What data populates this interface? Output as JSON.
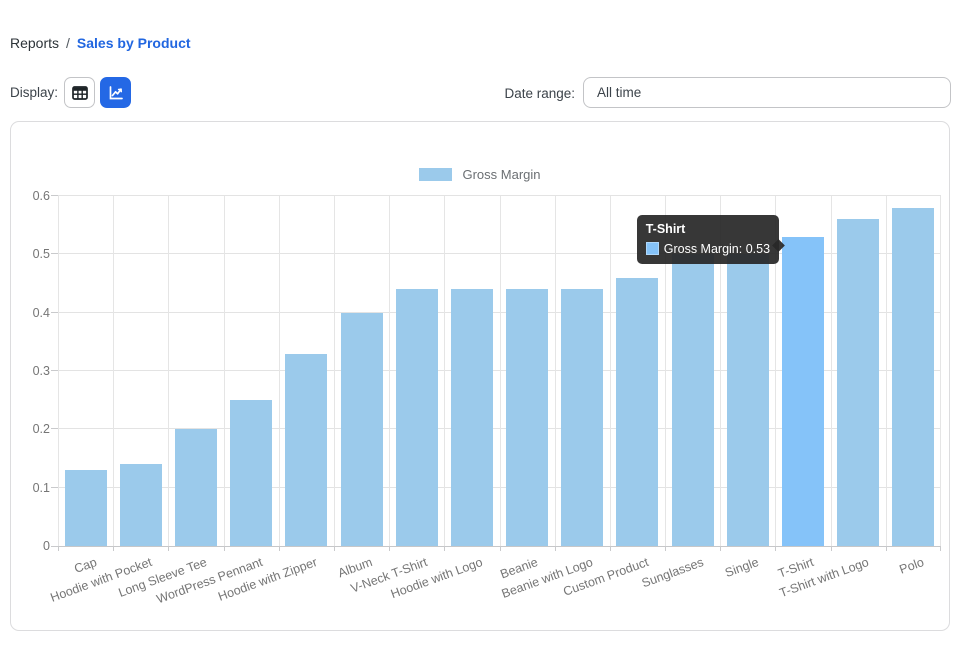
{
  "breadcrumb": {
    "root": "Reports",
    "separator": "/",
    "current": "Sales by Product"
  },
  "toolbar": {
    "display_label": "Display:",
    "view_buttons": [
      {
        "name": "table-view",
        "icon": "table-icon",
        "selected": false
      },
      {
        "name": "chart-view",
        "icon": "line-chart-icon",
        "selected": true
      }
    ],
    "date_range_label": "Date range:",
    "date_range_value": "All time"
  },
  "colors": {
    "accent": "#2468e5",
    "link": "#2166e0",
    "bar": "#9bcaeb",
    "bar_highlight": "#85c3f9",
    "grid": "#e3e3e3",
    "axis": "#c6c7c9",
    "muted_text": "#757575",
    "tooltip_bg": "#282828"
  },
  "chart_data": {
    "type": "bar",
    "title": "",
    "legend": [
      {
        "label": "Gross Margin",
        "color": "#9bcaeb"
      }
    ],
    "legend_position": "top-center",
    "grid": true,
    "categories": [
      "Cap",
      "Hoodie with Pocket",
      "Long Sleeve Tee",
      "WordPress Pennant",
      "Hoodie with Zipper",
      "Album",
      "V-Neck T-Shirt",
      "Hoodie with Logo",
      "Beanie",
      "Beanie with Logo",
      "Custom Product",
      "Sunglasses",
      "Single",
      "T-Shirt",
      "T-Shirt with Logo",
      "Polo"
    ],
    "values": [
      0.13,
      0.14,
      0.2,
      0.25,
      0.33,
      0.4,
      0.44,
      0.44,
      0.44,
      0.44,
      0.46,
      0.5,
      0.5,
      0.53,
      0.56,
      0.58
    ],
    "xlabel": "",
    "ylabel": "",
    "ylim": [
      0,
      0.6
    ],
    "ytick_labels": [
      "0",
      "0.1",
      "0.2",
      "0.3",
      "0.4",
      "0.5",
      "0.6"
    ],
    "highlight_index": 13,
    "tooltip": {
      "title": "T-Shirt",
      "label": "Gross Margin: 0.53"
    }
  }
}
